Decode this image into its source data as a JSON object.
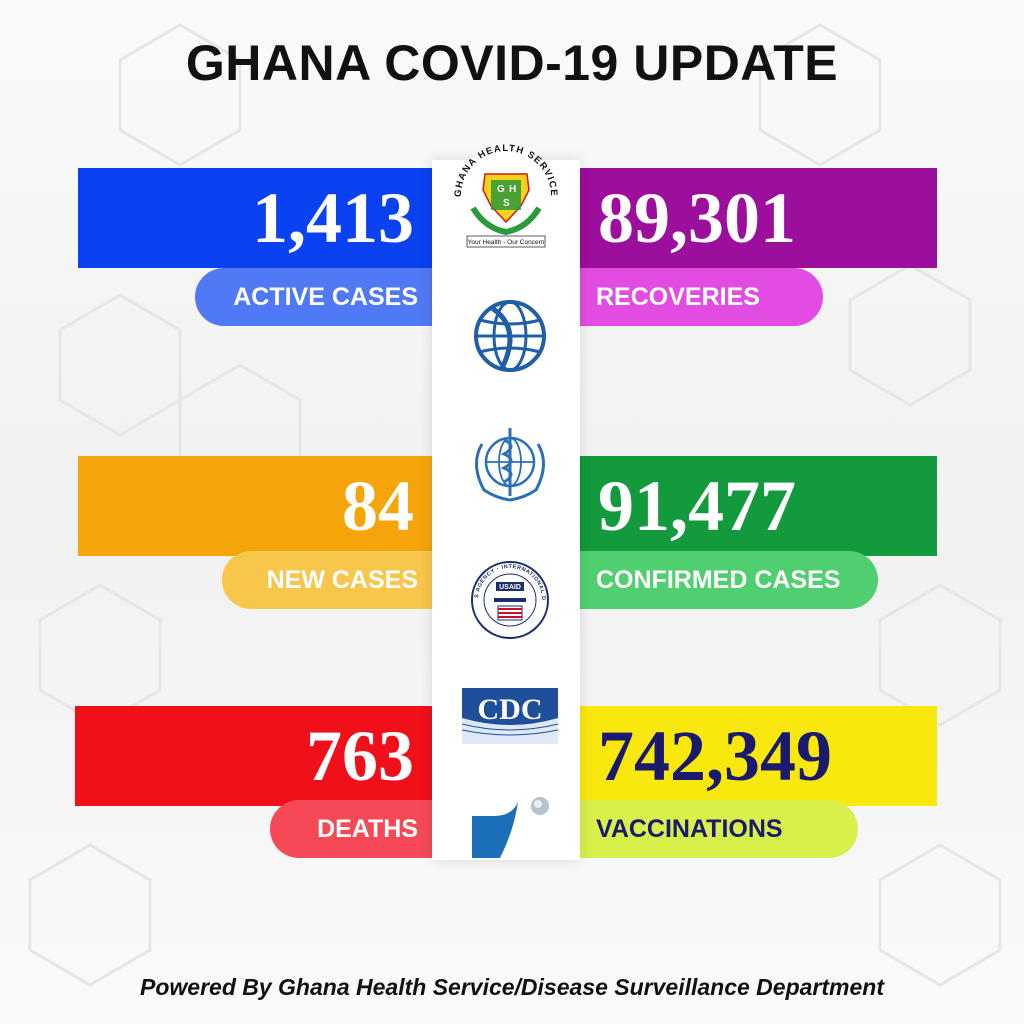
{
  "title": "GHANA COVID-19 UPDATE",
  "stats": [
    {
      "value": "1,413",
      "label": "ACTIVE CASES",
      "band_color": "#0a41f0",
      "label_color": "#4f79f5",
      "value_color": "#ffffff",
      "label_text_color": "#ffffff"
    },
    {
      "value": "89,301",
      "label": "RECOVERIES",
      "band_color": "#9c0e9c",
      "label_color": "#e34ce3",
      "value_color": "#ffffff",
      "label_text_color": "#ffffff"
    },
    {
      "value": "84",
      "label": "NEW CASES",
      "band_color": "#f5a40a",
      "label_color": "#f8c64a",
      "value_color": "#ffffff",
      "label_text_color": "#ffffff"
    },
    {
      "value": "91,477",
      "label": "CONFIRMED CASES",
      "band_color": "#139a3c",
      "label_color": "#4fcf6f",
      "value_color": "#ffffff",
      "label_text_color": "#ffffff"
    },
    {
      "value": "763",
      "label": "DEATHS",
      "band_color": "#f0101a",
      "label_color": "#f54a55",
      "value_color": "#ffffff",
      "label_text_color": "#ffffff"
    },
    {
      "value": "742,349",
      "label": "VACCINATIONS",
      "band_color": "#f9e80e",
      "label_color": "#d9ef4a",
      "value_color": "#1a1a6e",
      "label_text_color": "#1a1a6e"
    }
  ],
  "logos": {
    "ghs_ring_text": "GHANA HEALTH SERVICE",
    "ghs_letters": [
      "G",
      "H",
      "S"
    ],
    "ghs_tagline": "Your Health - Our Concern",
    "world_bank": "world-bank-globe-logo",
    "who": "who-emblem-logo",
    "usaid_ring_text": "UNITED STATES AGENCY · INTERNATIONAL DEVELOPMENT",
    "usaid_badge": "USAID",
    "cdc": "CDC",
    "bottom_logo": "swoosh-logo"
  },
  "footer": "Powered By Ghana Health Service/Disease Surveillance Department"
}
